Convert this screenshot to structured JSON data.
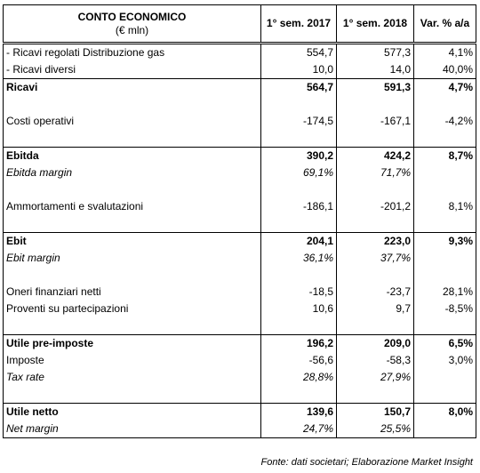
{
  "header": {
    "title": "CONTO ECONOMICO",
    "unit": "(€ mln)",
    "columns": [
      "1° sem. 2017",
      "1° sem. 2018",
      "Var. % a/a"
    ]
  },
  "table": {
    "groups": [
      [
        {
          "cells": [
            "- Ricavi regolati Distribuzione gas",
            "554,7",
            "577,3",
            "4,1%"
          ]
        },
        {
          "cells": [
            "- Ricavi diversi",
            "10,0",
            "14,0",
            "40,0%"
          ]
        },
        {
          "cells": [
            "Ricavi",
            "564,7",
            "591,3",
            "4,7%"
          ],
          "style": "bold"
        }
      ],
      [
        {
          "cells": [
            "Costi operativi",
            "-174,5",
            "-167,1",
            "-4,2%"
          ]
        }
      ],
      [
        {
          "cells": [
            "Ebitda",
            "390,2",
            "424,2",
            "8,7%"
          ],
          "style": "bold"
        },
        {
          "cells": [
            "Ebitda margin",
            "69,1%",
            "71,7%"
          ],
          "style": "italic"
        }
      ],
      [
        {
          "cells": [
            "Ammortamenti e svalutazioni",
            "-186,1",
            "-201,2",
            "8,1%"
          ]
        }
      ],
      [
        {
          "cells": [
            "Ebit",
            "204,1",
            "223,0",
            "9,3%"
          ],
          "style": "bold"
        },
        {
          "cells": [
            "Ebit margin",
            "36,1%",
            "37,7%"
          ],
          "style": "italic"
        }
      ],
      [
        {
          "cells": [
            "Oneri finanziari netti",
            "-18,5",
            "-23,7",
            "28,1%"
          ]
        },
        {
          "cells": [
            "Proventi su partecipazioni",
            "10,6",
            "9,7",
            "-8,5%"
          ]
        }
      ],
      [
        {
          "cells": [
            "Utile pre-imposte",
            "196,2",
            "209,0",
            "6,5%"
          ],
          "style": "bold"
        },
        {
          "cells": [
            "Imposte",
            "-56,6",
            "-58,3",
            "3,0%"
          ]
        },
        {
          "cells": [
            "Tax rate",
            "28,8%",
            "27,9%"
          ],
          "style": "italic"
        }
      ],
      [
        {
          "cells": [
            "Utile netto",
            "139,6",
            "150,7",
            "8,0%"
          ],
          "style": "bold"
        },
        {
          "cells": [
            "Net margin",
            "24,7%",
            "25,5%"
          ],
          "style": "italic"
        }
      ]
    ]
  },
  "footer": {
    "source": "Fonte: dati societari; Elaborazione Market Insight"
  }
}
